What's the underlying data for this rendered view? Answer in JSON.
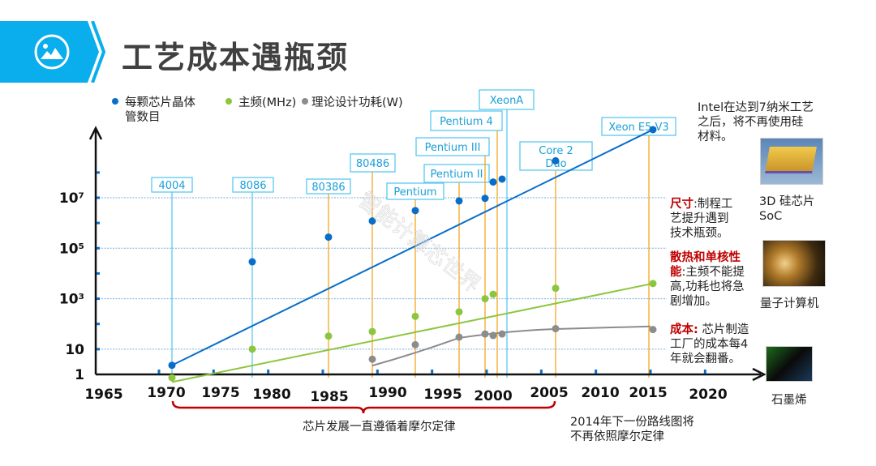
{
  "header": {
    "title": "工艺成本遇瓶颈",
    "icon": "image-icon",
    "banner_color": "#0aaeec"
  },
  "legend": [
    {
      "label": "每颗芯片晶体管数目",
      "line1": "每颗芯片晶体",
      "line2": "管数目",
      "color": "#0a6ec8"
    },
    {
      "label": "主频(MHz)",
      "color": "#8cc63f"
    },
    {
      "label": "理论设计功耗(W)",
      "color": "#8c8c8c"
    }
  ],
  "chart_data": {
    "type": "scatter",
    "title": "",
    "xlabel": "",
    "ylabel": "",
    "y_scale": "log",
    "x_ticks": [
      "1965",
      "1970",
      "1975",
      "1980",
      "1985",
      "1990",
      "1995",
      "2000",
      "2005",
      "2010",
      "2015",
      "2020"
    ],
    "y_tick_labels": [
      "1",
      "10",
      "10³",
      "10⁵",
      "10⁷"
    ],
    "xlim": [
      1965,
      2022
    ],
    "ylim_log10": [
      0,
      8
    ],
    "grid": "horizontal-dotted",
    "series": [
      {
        "name": "每颗芯片晶体管数目",
        "color": "#0a6ec8",
        "points": [
          [
            1971,
            2.3
          ],
          [
            1978,
            29000
          ],
          [
            1985,
            275000
          ],
          [
            1989,
            1200000
          ],
          [
            1993,
            3100000
          ],
          [
            1997,
            7500000
          ],
          [
            1999,
            9500000
          ],
          [
            2000,
            42000000
          ],
          [
            2001,
            55000000
          ],
          [
            2006,
            291000000
          ],
          [
            2015,
            5000000000
          ]
        ],
        "trend": [
          [
            1971,
            2.3
          ],
          [
            2015,
            5000000000
          ]
        ]
      },
      {
        "name": "主频(MHz)",
        "color": "#8cc63f",
        "points": [
          [
            1971,
            0.74
          ],
          [
            1978,
            10
          ],
          [
            1985,
            33
          ],
          [
            1989,
            50
          ],
          [
            1993,
            200
          ],
          [
            1997,
            300
          ],
          [
            1999,
            1000
          ],
          [
            2000,
            1500
          ],
          [
            2006,
            2600
          ],
          [
            2015,
            4000
          ]
        ],
        "trend": [
          [
            1971,
            0.5
          ],
          [
            2015,
            4000
          ]
        ]
      },
      {
        "name": "理论设计功耗(W)",
        "color": "#8c8c8c",
        "points": [
          [
            1989,
            4
          ],
          [
            1993,
            15
          ],
          [
            1997,
            30
          ],
          [
            1999,
            40
          ],
          [
            2000,
            35
          ],
          [
            2001,
            40
          ],
          [
            2006,
            65
          ],
          [
            2015,
            60
          ]
        ],
        "trend": [
          [
            1989,
            3
          ],
          [
            1997,
            28
          ],
          [
            2006,
            63
          ],
          [
            2015,
            80
          ]
        ]
      }
    ],
    "annotations": [
      {
        "label": "4004",
        "year": 1971,
        "color": "#5bc8f0"
      },
      {
        "label": "8086",
        "year": 1978,
        "color": "#5bc8f0"
      },
      {
        "label": "80386",
        "year": 1985,
        "color": "#f5a623"
      },
      {
        "label": "80486",
        "year": 1989,
        "color": "#f5a623"
      },
      {
        "label": "Pentium",
        "year": 1993,
        "color": "#f5a623"
      },
      {
        "label": "Pentium II",
        "year": 1997,
        "color": "#f5a623"
      },
      {
        "label": "Pentium III",
        "year": 1999,
        "color": "#f5a623"
      },
      {
        "label": "Pentium 4",
        "year": 2000,
        "color": "#f5a623"
      },
      {
        "label": "XeonA",
        "year": 2001,
        "color": "#5bc8f0"
      },
      {
        "label": "Core 2 Duo",
        "year": 2006,
        "color": "#f5a623"
      },
      {
        "label": "Xeon E5 V3",
        "year": 2015,
        "color": "#f5a623"
      }
    ],
    "brace_label": "芯片发展一直遵循着摩尔定律",
    "brace_range": [
      1970,
      2005
    ],
    "footnote": [
      "2014年下一份路线图将",
      "不再依照摩尔定律"
    ]
  },
  "side_notes": {
    "intel": [
      "Intel在达到7纳米工艺",
      "之后，将不再使用硅",
      "材料。"
    ],
    "size_bold": "尺寸",
    "size_text": [
      "尺寸:制程工",
      "艺提升遇到",
      "技术瓶颈。"
    ],
    "heat_bold": [
      "散热和单核性",
      "能"
    ],
    "heat_text": [
      ":主频不能提",
      "高,功耗也将急",
      "剧增加。"
    ],
    "cost_bold": "成本:",
    "cost_text": [
      " 芯片制造",
      "工厂的成本每4",
      "年就会翻番。"
    ]
  },
  "images": [
    {
      "name": "3d-chip-image",
      "caption_lines": [
        "3D 硅芯片",
        "SoC"
      ]
    },
    {
      "name": "quantum-computer-image",
      "caption_lines": [
        "量子计算机"
      ]
    },
    {
      "name": "graphene-image",
      "caption_lines": [
        "石墨烯"
      ]
    }
  ],
  "watermark": "智能计算芯世界"
}
